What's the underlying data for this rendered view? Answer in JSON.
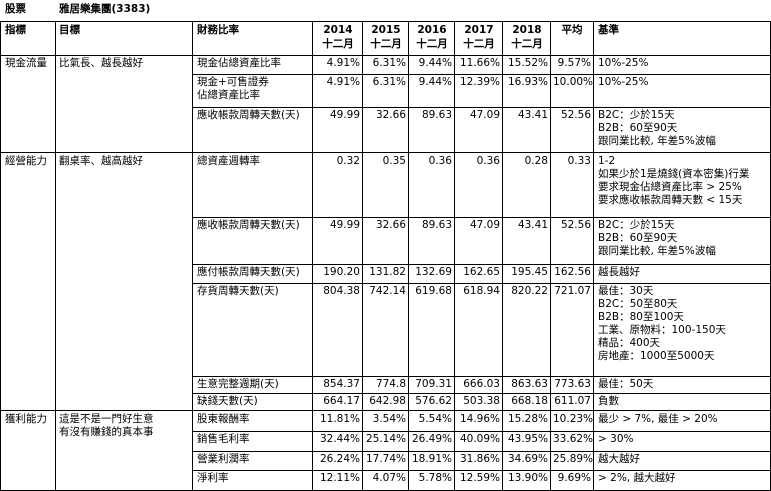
{
  "header": {
    "stock_label": "股票",
    "company": "雅居樂集團(3383)"
  },
  "columns": {
    "indicator": "指標",
    "goal": "目標",
    "ratio": "財務比率",
    "years": [
      {
        "year": "2014",
        "month": "十二月"
      },
      {
        "year": "2015",
        "month": "十二月"
      },
      {
        "year": "2016",
        "month": "十二月"
      },
      {
        "year": "2017",
        "month": "十二月"
      },
      {
        "year": "2018",
        "month": "十二月"
      }
    ],
    "average": "平均",
    "benchmark": "基準"
  },
  "sections": [
    {
      "indicator": "現金流量",
      "goal": [
        "比氣長、越長越好"
      ],
      "rows": [
        {
          "name": [
            "現金佔總資產比率"
          ],
          "values": [
            "4.91%",
            "6.31%",
            "9.44%",
            "11.66%",
            "15.52%"
          ],
          "average": "9.57%",
          "benchmark": [
            "10%-25%"
          ]
        },
        {
          "name": [
            "現金+可售證券",
            "佔總資產比率"
          ],
          "values": [
            "4.91%",
            "6.31%",
            "9.44%",
            "12.39%",
            "16.93%"
          ],
          "average": "10.00%",
          "benchmark": [
            "10%-25%"
          ]
        },
        {
          "name": [
            "應收帳款周轉天數(天)"
          ],
          "values": [
            "49.99",
            "32.66",
            "89.63",
            "47.09",
            "43.41"
          ],
          "average": "52.56",
          "benchmark": [
            "B2C：少於15天",
            "B2B：60至90天",
            "跟同業比較, 年差5%波幅"
          ]
        }
      ]
    },
    {
      "indicator": "經營能力",
      "goal": [
        "翻桌率、越高越好"
      ],
      "rows": [
        {
          "name": [
            "總資產週轉率"
          ],
          "values": [
            "0.32",
            "0.35",
            "0.36",
            "0.36",
            "0.28"
          ],
          "average": "0.33",
          "benchmark": [
            "1-2",
            "如果少於1是燒錢(資本密集)行業",
            "要求現金佔總資產比率 > 25%",
            "要求應收帳款周轉天數 < 15天"
          ]
        },
        {
          "name": [
            "應收帳款周轉天數(天)"
          ],
          "values": [
            "49.99",
            "32.66",
            "89.63",
            "47.09",
            "43.41"
          ],
          "average": "52.56",
          "benchmark": [
            "B2C：少於15天",
            "B2B：60至90天",
            "跟同業比較, 年差5%波幅"
          ]
        },
        {
          "name": [
            "應付帳款周轉天數(天)"
          ],
          "values": [
            "190.20",
            "131.82",
            "132.69",
            "162.65",
            "195.45"
          ],
          "average": "162.56",
          "benchmark": [
            "越長越好"
          ]
        },
        {
          "name": [
            "存貨周轉天數(天)"
          ],
          "values": [
            "804.38",
            "742.14",
            "619.68",
            "618.94",
            "820.22"
          ],
          "average": "721.07",
          "benchmark": [
            "最佳：30天",
            "B2C：50至80天",
            "B2B：80至100天",
            "工業、原物料：100-150天",
            "精品：400天",
            "房地產：1000至5000天"
          ]
        },
        {
          "name": [
            "生意完整週期(天)"
          ],
          "values": [
            "854.37",
            "774.8",
            "709.31",
            "666.03",
            "863.63"
          ],
          "average": "773.63",
          "benchmark": [
            "最佳：50天"
          ]
        },
        {
          "name": [
            "缺錢天數(天)"
          ],
          "values": [
            "664.17",
            "642.98",
            "576.62",
            "503.38",
            "668.18"
          ],
          "average": "611.07",
          "benchmark": [
            "負數"
          ]
        }
      ]
    },
    {
      "indicator": "獲利能力",
      "goal": [
        "這是不是一門好生意",
        "有沒有賺錢的真本事"
      ],
      "rows": [
        {
          "name": [
            "股東報酬率"
          ],
          "values": [
            "11.81%",
            "3.54%",
            "5.54%",
            "14.96%",
            "15.28%"
          ],
          "average": "10.23%",
          "benchmark": [
            "最少 > 7%, 最佳 > 20%"
          ]
        },
        {
          "name": [
            "銷售毛利率"
          ],
          "values": [
            "32.44%",
            "25.14%",
            "26.49%",
            "40.09%",
            "43.95%"
          ],
          "average": "33.62%",
          "benchmark": [
            "> 30%"
          ]
        },
        {
          "name": [
            "營業利潤率"
          ],
          "values": [
            "26.24%",
            "17.74%",
            "18.91%",
            "31.86%",
            "34.69%"
          ],
          "average": "25.89%",
          "benchmark": [
            "越大越好"
          ]
        },
        {
          "name": [
            "淨利率"
          ],
          "values": [
            "12.11%",
            "4.07%",
            "5.78%",
            "12.59%",
            "13.90%"
          ],
          "average": "9.69%",
          "benchmark": [
            "> 2%, 越大越好"
          ]
        }
      ]
    }
  ]
}
